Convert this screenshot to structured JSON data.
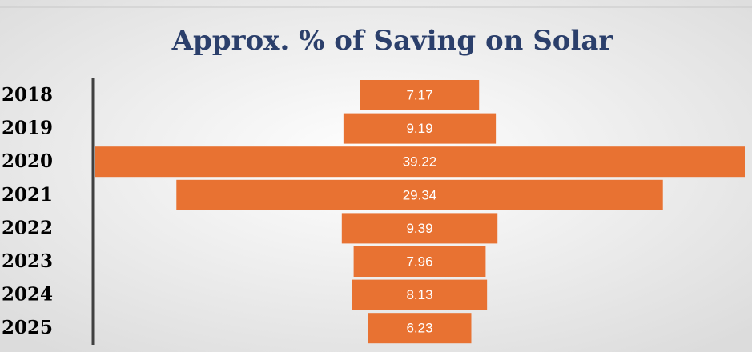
{
  "chart_data": {
    "type": "bar",
    "orientation": "horizontal-centered",
    "title": "Approx. % of Saving on Solar",
    "categories": [
      "2018",
      "2019",
      "2020",
      "2021",
      "2022",
      "2023",
      "2024",
      "2025"
    ],
    "values": [
      7.17,
      9.19,
      39.22,
      29.34,
      9.39,
      7.96,
      8.13,
      6.23
    ],
    "color": "#e87232"
  }
}
